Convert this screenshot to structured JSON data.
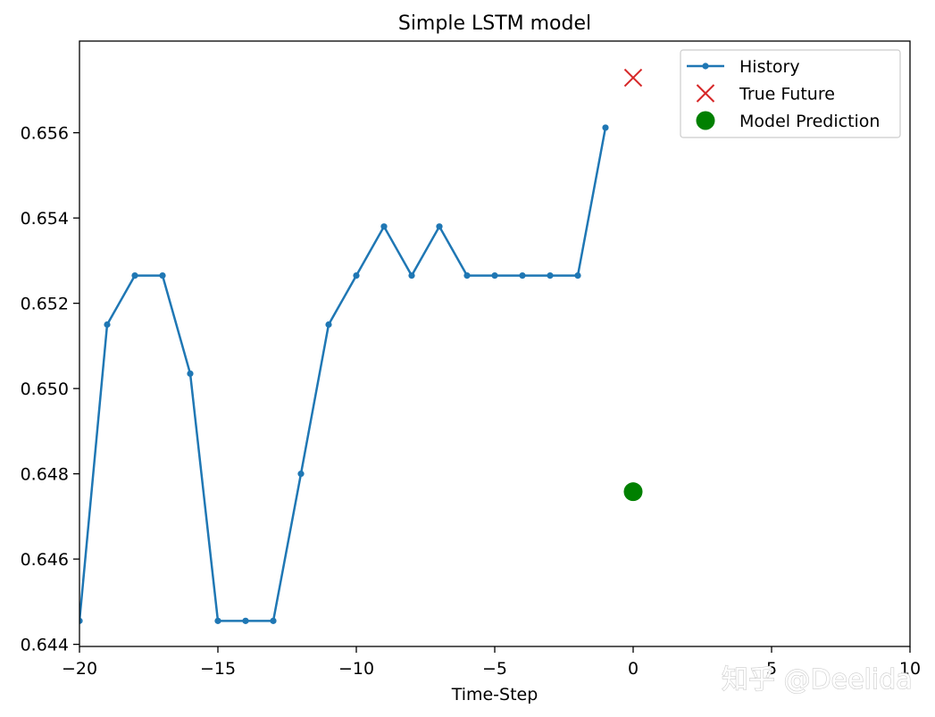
{
  "watermark": "知乎 @Deelida",
  "chart_data": {
    "type": "line",
    "title": "Simple LSTM model",
    "xlabel": "Time-Step",
    "ylabel": "",
    "xlim": [
      -20,
      10
    ],
    "ylim": [
      0.64395,
      0.65815
    ],
    "xticks": [
      -20,
      -15,
      -10,
      -5,
      0,
      5,
      10
    ],
    "xtick_labels": [
      "−20",
      "−15",
      "−10",
      "−5",
      "0",
      "5",
      "10"
    ],
    "yticks": [
      0.644,
      0.646,
      0.648,
      0.65,
      0.652,
      0.654,
      0.656
    ],
    "ytick_labels": [
      "0.644",
      "0.646",
      "0.648",
      "0.650",
      "0.652",
      "0.654",
      "0.656"
    ],
    "grid": false,
    "legend_position": "top-right",
    "series": [
      {
        "name": "History",
        "color": "#1f77b4",
        "marker": "dot",
        "x": [
          -20,
          -19,
          -18,
          -17,
          -16,
          -15,
          -14,
          -13,
          -12,
          -11,
          -10,
          -9,
          -8,
          -7,
          -6,
          -5,
          -4,
          -3,
          -2,
          -1
        ],
        "values": [
          0.64455,
          0.6515,
          0.65265,
          0.65265,
          0.65035,
          0.64455,
          0.64455,
          0.64455,
          0.648,
          0.6515,
          0.65265,
          0.6538,
          0.65265,
          0.6538,
          0.65265,
          0.65265,
          0.65265,
          0.65265,
          0.65265,
          0.65612
        ]
      },
      {
        "name": "True Future",
        "color": "#d62728",
        "marker": "x",
        "x": [
          0
        ],
        "values": [
          0.65729
        ]
      },
      {
        "name": "Model Prediction",
        "color": "#008000",
        "marker": "circle",
        "x": [
          0
        ],
        "values": [
          0.64758
        ]
      }
    ]
  }
}
